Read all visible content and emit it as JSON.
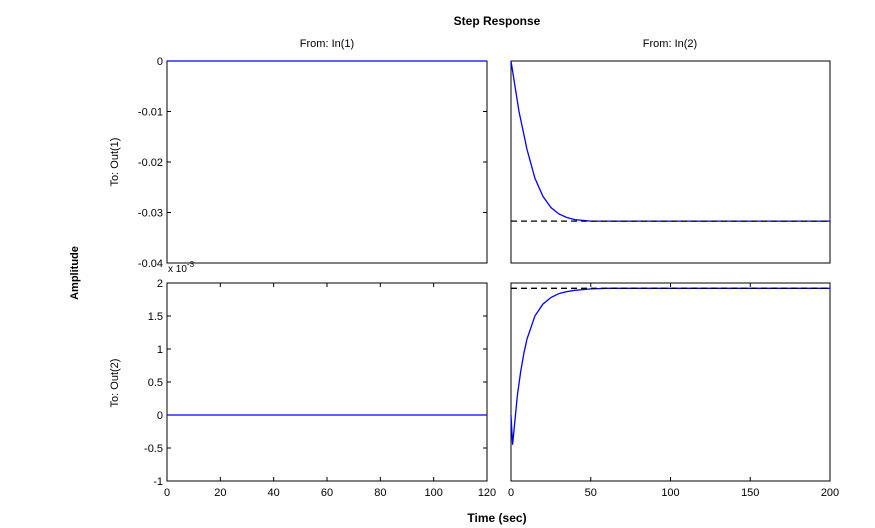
{
  "title": "Step Response",
  "xlabel": "Time (sec)",
  "ylabel": "Amplitude",
  "col_titles": [
    "From: In(1)",
    "From: In(2)"
  ],
  "row_labels": [
    "To: Out(1)",
    "To: Out(2)"
  ],
  "exponent_label": "x 10",
  "exponent_power": "-3",
  "colors": {
    "response": "#0000ff",
    "steady_state": "#000000",
    "axes": "#000000"
  },
  "chart_data": [
    {
      "type": "line",
      "panel": "From: In(1) / To: Out(1)",
      "xlim": [
        0,
        120
      ],
      "ylim": [
        -0.04,
        0
      ],
      "yticks": [
        0,
        -0.01,
        -0.02,
        -0.03,
        -0.04
      ],
      "yticklabels": [
        "0",
        "-0.01",
        "-0.02",
        "-0.03",
        "-0.04"
      ],
      "series": [
        {
          "x": [
            0,
            120
          ],
          "y": [
            0,
            0
          ]
        }
      ]
    },
    {
      "type": "line",
      "panel": "From: In(2) / To: Out(1)",
      "xlim": [
        0,
        200
      ],
      "ylim": [
        -0.04,
        0
      ],
      "series": [
        {
          "x": [
            0,
            2,
            5,
            10,
            15,
            20,
            25,
            30,
            35,
            40,
            50,
            60,
            90,
            100,
            150,
            200
          ],
          "y": [
            0,
            -0.004,
            -0.01,
            -0.0175,
            -0.0232,
            -0.0268,
            -0.029,
            -0.0303,
            -0.031,
            -0.0314,
            -0.0317,
            -0.0317,
            -0.0317,
            -0.0317,
            -0.0317,
            -0.0317
          ]
        },
        {
          "style": "dashed",
          "x": [
            0,
            200
          ],
          "y": [
            -0.0317,
            -0.0317
          ]
        }
      ]
    },
    {
      "type": "line",
      "panel": "From: In(1) / To: Out(2)",
      "xlim": [
        0,
        120
      ],
      "ylim": [
        -1,
        2
      ],
      "yscale_label": "x 10^-3",
      "xticks": [
        0,
        20,
        40,
        60,
        80,
        100,
        120
      ],
      "xticklabels": [
        "0",
        "20",
        "40",
        "60",
        "80",
        "100",
        "120"
      ],
      "yticks": [
        2,
        1.5,
        1,
        0.5,
        0,
        -0.5,
        -1
      ],
      "yticklabels": [
        "2",
        "1.5",
        "1",
        "0.5",
        "0",
        "-0.5",
        "-1"
      ],
      "series": [
        {
          "x": [
            0,
            120
          ],
          "y": [
            0,
            0
          ]
        }
      ]
    },
    {
      "type": "line",
      "panel": "From: In(2) / To: Out(2)",
      "xlim": [
        0,
        200
      ],
      "ylim": [
        -1,
        2
      ],
      "xticks": [
        0,
        50,
        100,
        150,
        200
      ],
      "xticklabels": [
        "0",
        "50",
        "100",
        "150",
        "200"
      ],
      "series": [
        {
          "x": [
            0,
            1,
            2,
            4,
            6,
            8,
            10,
            15,
            20,
            25,
            30,
            35,
            40,
            45,
            50,
            60,
            80,
            100,
            150,
            200
          ],
          "y": [
            0,
            -0.45,
            -0.2,
            0.3,
            0.65,
            0.93,
            1.15,
            1.5,
            1.68,
            1.78,
            1.84,
            1.87,
            1.89,
            1.9,
            1.91,
            1.92,
            1.92,
            1.92,
            1.92,
            1.92
          ]
        },
        {
          "style": "dashed",
          "x": [
            0,
            200
          ],
          "y": [
            1.92,
            1.92
          ]
        }
      ]
    }
  ]
}
